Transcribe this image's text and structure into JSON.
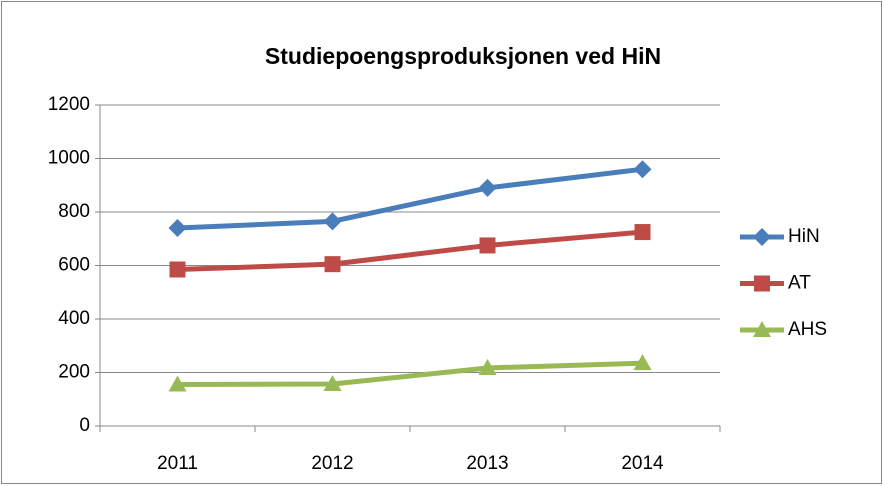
{
  "chart_data": {
    "type": "line",
    "title": "Studiepoengsproduksjonen ved HiN",
    "categories": [
      "2011",
      "2012",
      "2013",
      "2014"
    ],
    "series": [
      {
        "name": "HiN",
        "color": "#4a7ebb",
        "marker": "diamond",
        "values": [
          740,
          765,
          890,
          960
        ]
      },
      {
        "name": "AT",
        "color": "#be4b48",
        "marker": "square",
        "values": [
          585,
          605,
          675,
          725
        ]
      },
      {
        "name": "AHS",
        "color": "#98b954",
        "marker": "triangle",
        "values": [
          155,
          157,
          217,
          235
        ]
      }
    ],
    "ylim": [
      0,
      1200
    ],
    "yticks": [
      0,
      200,
      400,
      600,
      800,
      1000,
      1200
    ],
    "grid": true,
    "legend": "right"
  }
}
